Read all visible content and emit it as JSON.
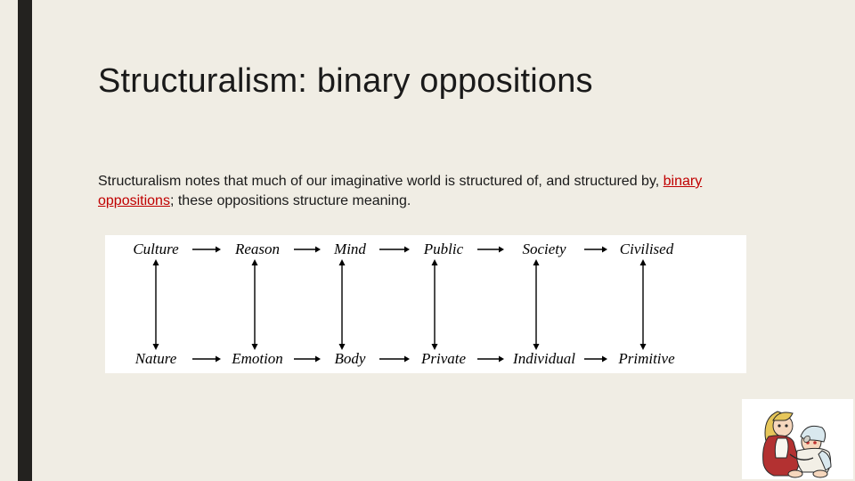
{
  "slide": {
    "title": "Structuralism: binary oppositions",
    "body_pre": "Structuralism notes that much of our imaginative world is structured of, and structured by, ",
    "body_red": "binary oppositions",
    "body_semicolon": ";",
    "body_post": " these oppositions structure meaning.",
    "accent_color": "#23221f",
    "background_color": "#f0ede4"
  },
  "diagram": {
    "type": "flowchart",
    "background_color": "#ffffff",
    "arrow_color": "#000000",
    "font_family": "Times New Roman",
    "font_style": "italic",
    "font_size_pt": 13,
    "top_terms": [
      "Culture",
      "Reason",
      "Mind",
      "Public",
      "Society",
      "Civilised"
    ],
    "bottom_terms": [
      "Nature",
      "Emotion",
      "Body",
      "Private",
      "Individual",
      "Primitive"
    ],
    "term_widths": [
      78,
      78,
      62,
      72,
      86,
      84
    ],
    "harrow_widths": [
      36,
      34,
      38,
      34,
      30
    ],
    "term_centers_x": [
      57,
      168,
      266,
      370,
      484,
      604
    ],
    "vertical_arrow_height": 104,
    "h_arrow_len": 30
  },
  "corner_image": {
    "description": "anime-characters-illustration",
    "width": 125,
    "height": 90,
    "palette": {
      "bg": "#ffffff",
      "hair1": "#e6c65a",
      "skin": "#f6d7bd",
      "cape": "#b33131",
      "shirt": "#f9f6ef",
      "hair2": "#d9e8ee",
      "dress": "#f2efe6",
      "outline": "#2a2a2a"
    }
  }
}
